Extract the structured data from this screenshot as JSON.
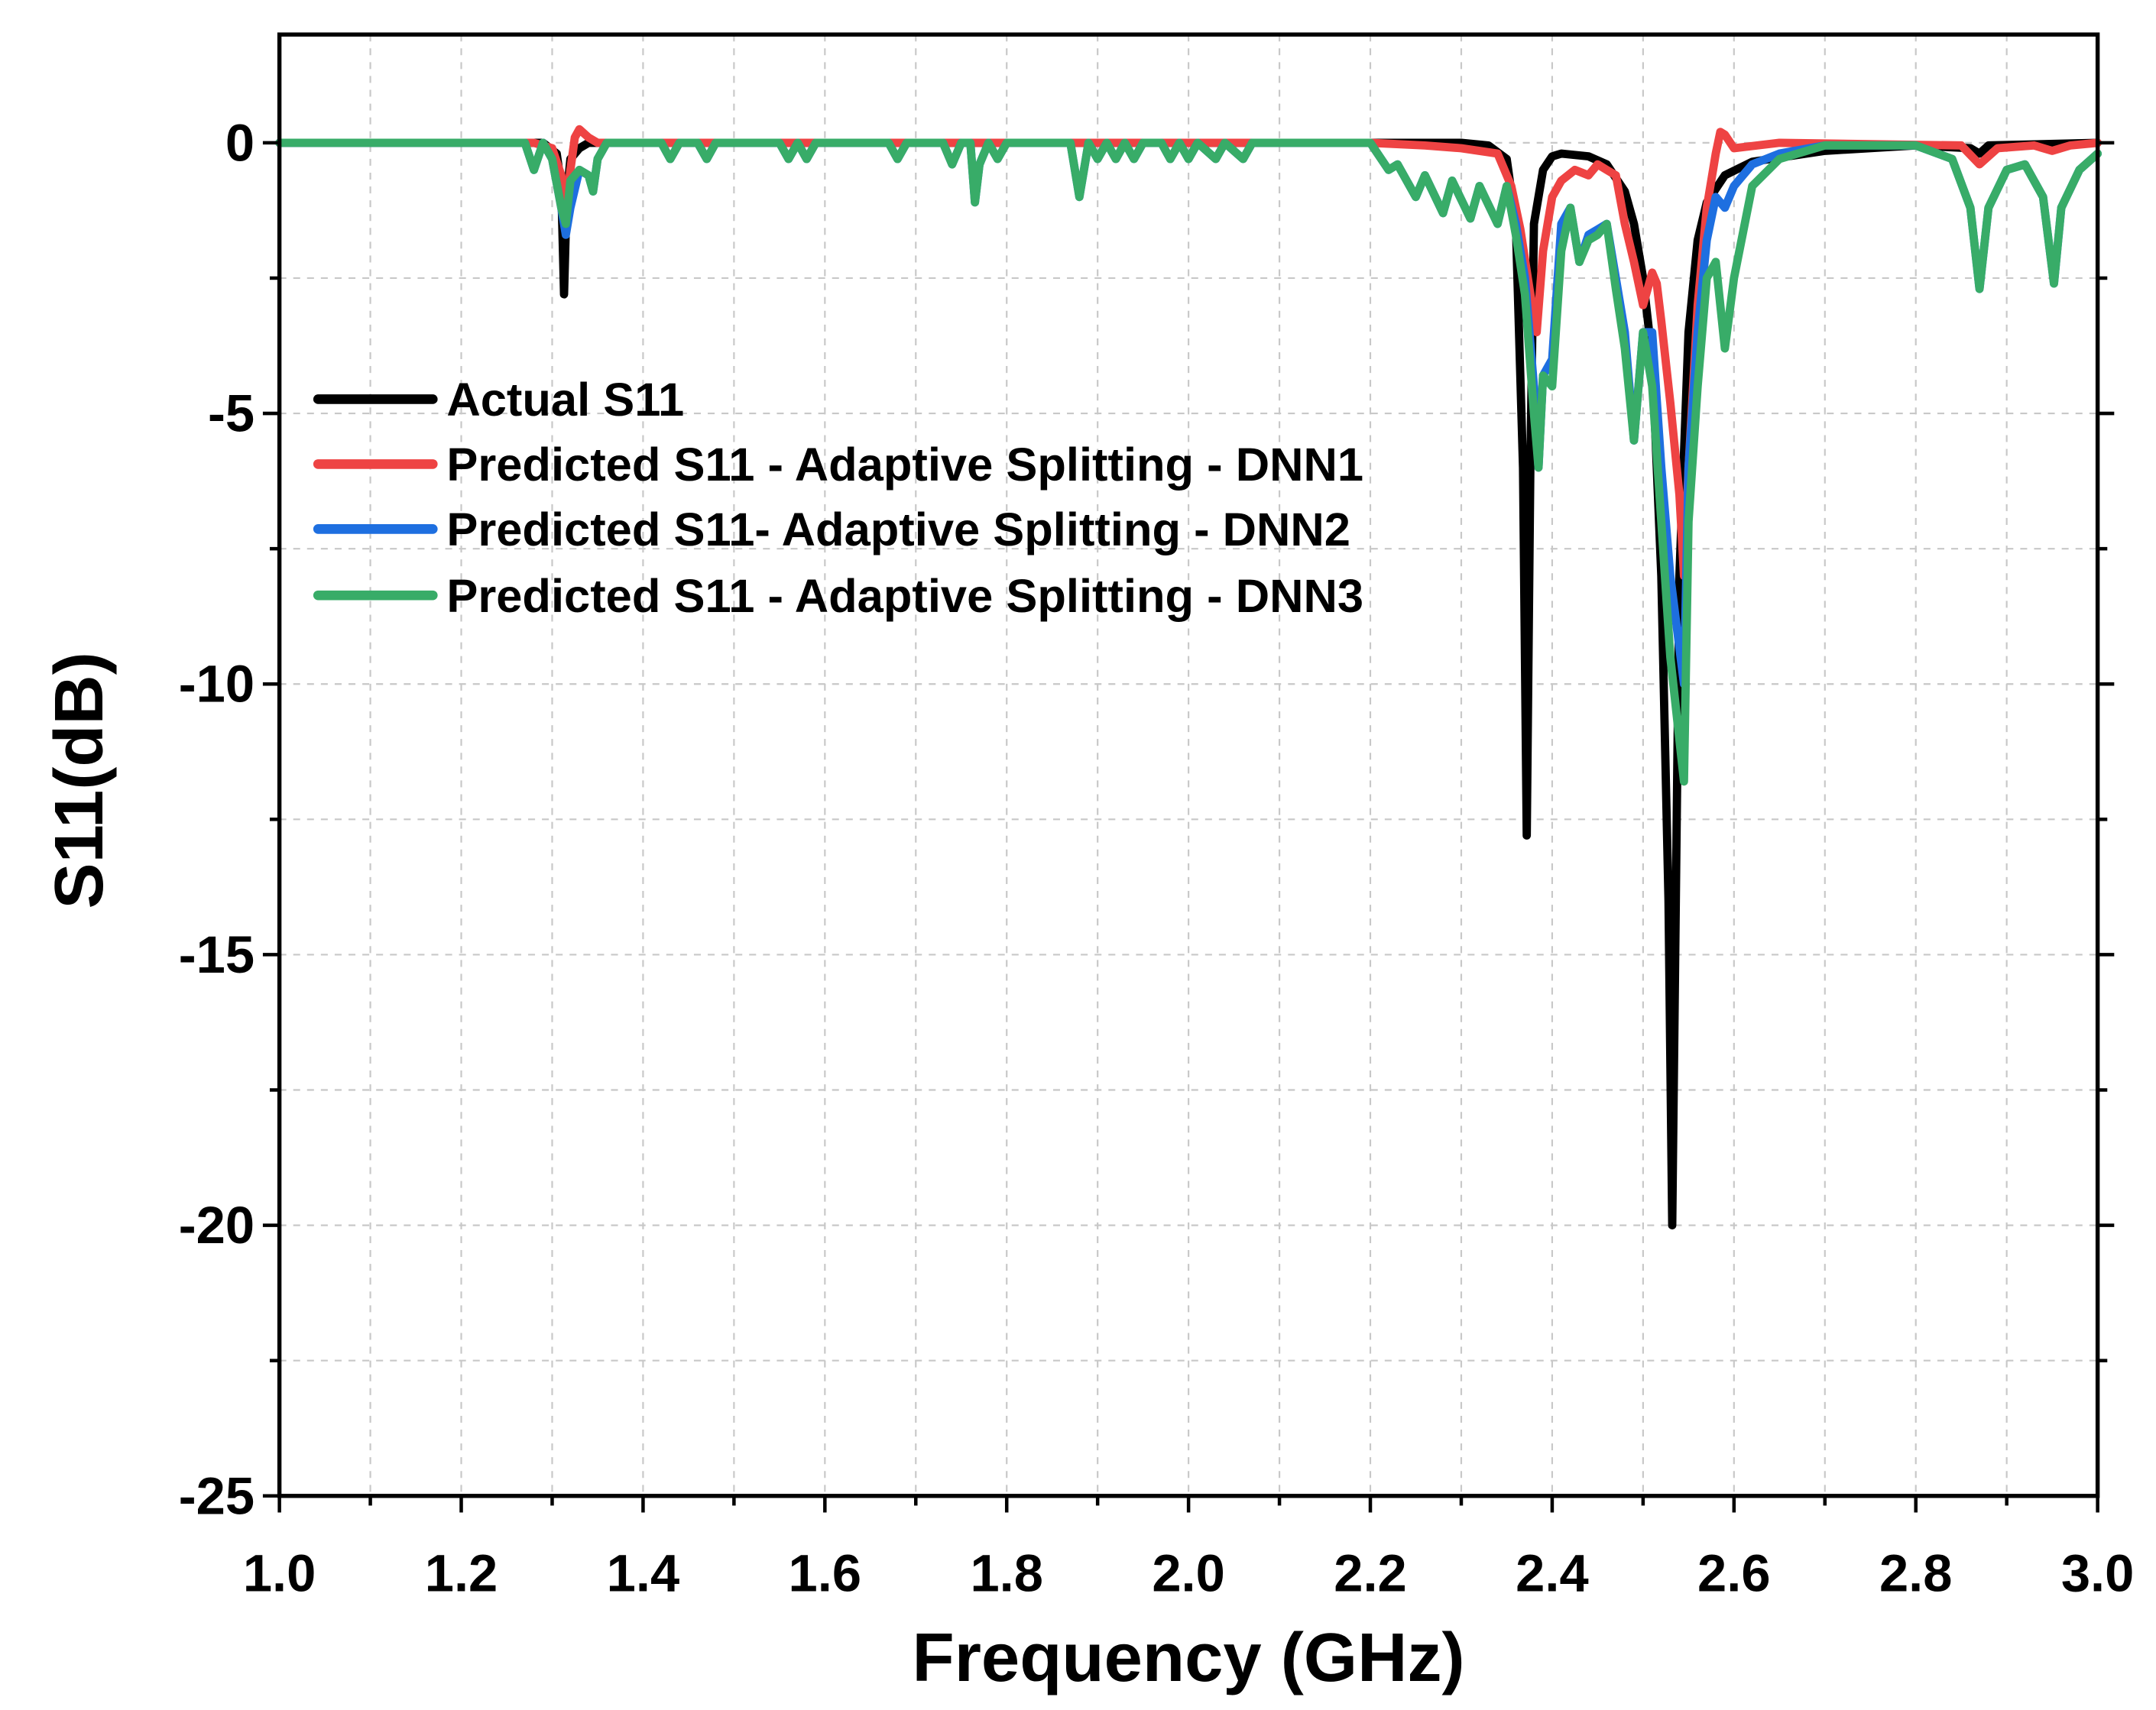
{
  "chart_data": {
    "type": "line",
    "title": "",
    "xlabel": "Frequency (GHz)",
    "ylabel": "S11(dB)",
    "xlim": [
      1.0,
      3.0
    ],
    "ylim": [
      -25,
      2
    ],
    "xticks": [
      1.0,
      1.2,
      1.4,
      1.6,
      1.8,
      2.0,
      2.2,
      2.4,
      2.6,
      2.8,
      3.0
    ],
    "xtick_labels": [
      "1.0",
      "1.2",
      "1.4",
      "1.6",
      "1.8",
      "2.0",
      "2.2",
      "2.4",
      "2.6",
      "2.8",
      "3.0"
    ],
    "yticks": [
      0,
      -5,
      -10,
      -15,
      -20,
      -25
    ],
    "ytick_labels": [
      "0",
      "-5",
      "-10",
      "-15",
      "-20",
      "-25"
    ],
    "grid": true,
    "legend_position": "upper-left",
    "series": [
      {
        "name": "Actual S11",
        "color": "#000000",
        "x": [
          1.0,
          1.29,
          1.305,
          1.31,
          1.313,
          1.316,
          1.32,
          1.33,
          1.34,
          2.3,
          2.33,
          2.35,
          2.36,
          2.368,
          2.372,
          2.376,
          2.38,
          2.39,
          2.4,
          2.41,
          2.44,
          2.46,
          2.48,
          2.49,
          2.5,
          2.51,
          2.52,
          2.528,
          2.532,
          2.536,
          2.54,
          2.55,
          2.56,
          2.57,
          2.59,
          2.62,
          2.7,
          2.8,
          2.86,
          2.87,
          2.88,
          3.0
        ],
        "y": [
          0,
          0,
          -0.2,
          -0.8,
          -2.8,
          -1.0,
          -0.3,
          -0.1,
          0,
          0,
          -0.05,
          -0.3,
          -1.5,
          -6,
          -12.8,
          -6,
          -1.5,
          -0.5,
          -0.25,
          -0.2,
          -0.25,
          -0.4,
          -0.9,
          -1.5,
          -2.5,
          -4,
          -8,
          -14,
          -20,
          -14,
          -8,
          -3.5,
          -1.8,
          -1.1,
          -0.6,
          -0.35,
          -0.15,
          -0.05,
          -0.1,
          -0.2,
          -0.05,
          0
        ]
      },
      {
        "name": "Predicted S11 - Adaptive Splitting - DNN1",
        "color": "#EE4343",
        "x": [
          1.0,
          1.28,
          1.3,
          1.31,
          1.315,
          1.32,
          1.325,
          1.33,
          1.34,
          1.35,
          2.2,
          2.26,
          2.3,
          2.34,
          2.355,
          2.365,
          2.375,
          2.383,
          2.39,
          2.4,
          2.41,
          2.425,
          2.44,
          2.45,
          2.46,
          2.47,
          2.48,
          2.49,
          2.5,
          2.51,
          2.515,
          2.52,
          2.53,
          2.54,
          2.545,
          2.55,
          2.56,
          2.57,
          2.58,
          2.585,
          2.59,
          2.6,
          2.65,
          2.85,
          2.87,
          2.89,
          2.93,
          2.95,
          2.97,
          3.0
        ],
        "y": [
          0,
          0,
          -0.1,
          -0.6,
          -1.3,
          -0.5,
          0.1,
          0.25,
          0.1,
          0,
          0,
          -0.05,
          -0.1,
          -0.2,
          -0.8,
          -1.6,
          -2.7,
          -3.5,
          -2.0,
          -1.0,
          -0.7,
          -0.5,
          -0.6,
          -0.4,
          -0.5,
          -0.6,
          -1.5,
          -2.2,
          -3.0,
          -2.4,
          -2.6,
          -3.3,
          -4.8,
          -6.5,
          -8,
          -6,
          -3,
          -1.2,
          -0.2,
          0.2,
          0.15,
          -0.1,
          0,
          -0.05,
          -0.4,
          -0.1,
          -0.05,
          -0.15,
          -0.05,
          0
        ]
      },
      {
        "name": "Predicted S11- Adaptive Splitting - DNN2",
        "color": "#1E6FE0",
        "x": [
          1.0,
          1.27,
          1.28,
          1.29,
          1.3,
          1.31,
          1.315,
          1.32,
          1.33,
          1.34,
          1.345,
          1.35,
          1.36,
          1.42,
          1.43,
          1.44,
          1.46,
          1.47,
          1.48,
          1.55,
          1.56,
          1.57,
          1.58,
          1.59,
          1.67,
          1.68,
          1.69,
          1.73,
          1.74,
          1.75,
          1.76,
          1.765,
          1.77,
          1.78,
          1.79,
          1.8,
          1.81,
          1.87,
          1.88,
          1.885,
          1.89,
          1.9,
          1.91,
          1.92,
          1.93,
          1.94,
          1.95,
          1.97,
          1.98,
          1.99,
          2.0,
          2.01,
          2.03,
          2.04,
          2.06,
          2.07,
          2.2,
          2.22,
          2.23,
          2.25,
          2.26,
          2.28,
          2.29,
          2.31,
          2.32,
          2.34,
          2.35,
          2.36,
          2.37,
          2.38,
          2.385,
          2.39,
          2.4,
          2.41,
          2.42,
          2.43,
          2.44,
          2.45,
          2.46,
          2.47,
          2.48,
          2.49,
          2.5,
          2.51,
          2.52,
          2.53,
          2.545,
          2.55,
          2.56,
          2.57,
          2.58,
          2.59,
          2.6,
          2.62,
          2.65,
          2.7,
          2.8,
          2.84,
          2.86,
          2.87,
          2.88,
          2.9,
          2.92,
          2.94,
          2.952,
          2.96,
          2.98,
          3.0
        ],
        "y": [
          0,
          0,
          -0.5,
          0,
          -0.3,
          -1.2,
          -1.7,
          -1.2,
          -0.5,
          -0.6,
          -0.9,
          -0.3,
          0,
          0,
          -0.3,
          0,
          0,
          -0.3,
          0,
          0,
          -0.3,
          0,
          -0.3,
          0,
          0,
          -0.3,
          0,
          0,
          -0.4,
          0,
          0,
          -1.1,
          -0.4,
          0,
          -0.3,
          0,
          0,
          0,
          -1.0,
          -0.5,
          0,
          -0.3,
          0,
          -0.3,
          0,
          -0.3,
          0,
          0,
          -0.3,
          0,
          -0.3,
          0,
          -0.3,
          0,
          -0.3,
          0,
          0,
          -0.5,
          -0.4,
          -1.0,
          -0.6,
          -1.3,
          -0.7,
          -1.4,
          -0.8,
          -1.5,
          -0.8,
          -1.5,
          -2.5,
          -4.5,
          -6,
          -4.3,
          -4,
          -1.5,
          -1.2,
          -2.2,
          -1.7,
          -1.6,
          -1.5,
          -2.5,
          -3.5,
          -5.5,
          -3.5,
          -3.5,
          -6,
          -8,
          -10,
          -6,
          -3.5,
          -1.8,
          -1.0,
          -1.2,
          -0.8,
          -0.4,
          -0.2,
          -0.05,
          -0.05,
          -0.3,
          -1.2,
          -2.7,
          -1.2,
          -0.5,
          -0.4,
          -1.0,
          -2.6,
          -1.2,
          -0.5,
          -0.2
        ]
      },
      {
        "name": "Predicted S11 - Adaptive Splitting - DNN3",
        "color": "#38AC68",
        "x": [
          1.0,
          1.27,
          1.28,
          1.29,
          1.3,
          1.31,
          1.315,
          1.32,
          1.33,
          1.34,
          1.345,
          1.35,
          1.36,
          1.42,
          1.43,
          1.44,
          1.46,
          1.47,
          1.48,
          1.55,
          1.56,
          1.57,
          1.58,
          1.59,
          1.67,
          1.68,
          1.69,
          1.73,
          1.74,
          1.75,
          1.76,
          1.765,
          1.77,
          1.78,
          1.79,
          1.8,
          1.81,
          1.87,
          1.88,
          1.885,
          1.89,
          1.9,
          1.91,
          1.92,
          1.93,
          1.94,
          1.95,
          1.97,
          1.98,
          1.99,
          2.0,
          2.01,
          2.03,
          2.04,
          2.06,
          2.07,
          2.2,
          2.22,
          2.23,
          2.25,
          2.26,
          2.28,
          2.29,
          2.31,
          2.32,
          2.34,
          2.35,
          2.36,
          2.37,
          2.38,
          2.385,
          2.39,
          2.4,
          2.41,
          2.42,
          2.43,
          2.44,
          2.45,
          2.46,
          2.47,
          2.48,
          2.49,
          2.5,
          2.51,
          2.52,
          2.53,
          2.545,
          2.55,
          2.56,
          2.57,
          2.58,
          2.59,
          2.6,
          2.62,
          2.65,
          2.7,
          2.8,
          2.84,
          2.86,
          2.87,
          2.88,
          2.9,
          2.92,
          2.94,
          2.952,
          2.96,
          2.98,
          3.0
        ],
        "y": [
          0,
          0,
          -0.5,
          0,
          -0.3,
          -1.2,
          -1.5,
          -0.7,
          -0.5,
          -0.6,
          -0.9,
          -0.3,
          0,
          0,
          -0.3,
          0,
          0,
          -0.3,
          0,
          0,
          -0.3,
          0,
          -0.3,
          0,
          0,
          -0.3,
          0,
          0,
          -0.4,
          0,
          0,
          -1.1,
          -0.4,
          0,
          -0.3,
          0,
          0,
          0,
          -1.0,
          -0.5,
          0,
          -0.3,
          0,
          -0.3,
          0,
          -0.3,
          0,
          0,
          -0.3,
          0,
          -0.3,
          0,
          -0.3,
          0,
          -0.3,
          0,
          0,
          -0.5,
          -0.4,
          -1.0,
          -0.6,
          -1.3,
          -0.7,
          -1.4,
          -0.8,
          -1.5,
          -0.8,
          -1.7,
          -2.8,
          -5,
          -6,
          -4.3,
          -4.5,
          -2,
          -1.2,
          -2.2,
          -1.8,
          -1.7,
          -1.5,
          -2.7,
          -3.8,
          -5.5,
          -3.5,
          -4.5,
          -7,
          -9.5,
          -11.8,
          -7,
          -4.5,
          -2.5,
          -2.2,
          -3.8,
          -2.5,
          -0.8,
          -0.3,
          -0.05,
          -0.05,
          -0.3,
          -1.2,
          -2.7,
          -1.2,
          -0.5,
          -0.4,
          -1.0,
          -2.6,
          -1.2,
          -0.5,
          -0.2
        ]
      }
    ]
  }
}
